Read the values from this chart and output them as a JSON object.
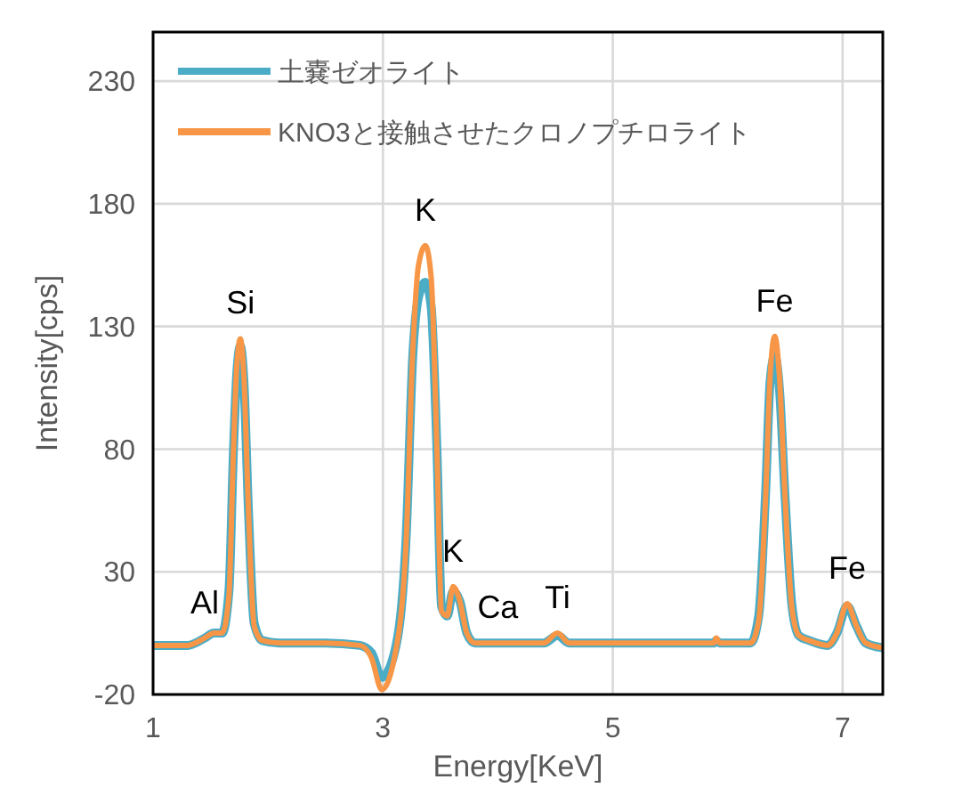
{
  "chart_data": {
    "type": "line",
    "xlabel": "Energy[KeV]",
    "ylabel": "Intensity[cps]",
    "x": [
      1.0,
      1.3,
      1.45,
      1.53,
      1.6,
      1.66,
      1.7,
      1.73,
      1.76,
      1.79,
      1.83,
      1.88,
      1.95,
      2.1,
      2.5,
      2.8,
      2.9,
      2.99,
      3.1,
      3.2,
      3.26,
      3.31,
      3.37,
      3.42,
      3.47,
      3.51,
      3.56,
      3.61,
      3.67,
      3.73,
      3.8,
      4.0,
      4.4,
      4.52,
      4.62,
      5.0,
      5.5,
      5.88,
      5.9,
      5.93,
      6.2,
      6.27,
      6.33,
      6.37,
      6.41,
      6.45,
      6.5,
      6.56,
      6.62,
      6.71,
      6.87,
      6.95,
      7.04,
      7.12,
      7.2,
      7.35
    ],
    "series": [
      {
        "name": "土嚢ゼオライト",
        "color": "#4bacc6",
        "values": [
          0,
          0,
          3,
          5,
          5,
          22,
          80,
          112,
          122,
          108,
          55,
          9,
          2,
          1,
          1,
          0,
          -3,
          -13,
          -3,
          42,
          118,
          142,
          148,
          138,
          80,
          16,
          12,
          22,
          18,
          5,
          1,
          1,
          1,
          4,
          1,
          1,
          1,
          1,
          2,
          1,
          1,
          12,
          62,
          108,
          118,
          105,
          60,
          16,
          4,
          2,
          0,
          5,
          16,
          8,
          1,
          -1
        ]
      },
      {
        "name": "KNO3と接触させたクロノプチロライト",
        "color": "#f79646",
        "values": [
          0,
          0,
          3,
          5,
          5,
          20,
          80,
          115,
          125,
          110,
          55,
          8,
          2,
          1,
          1,
          0,
          -5,
          -18,
          -5,
          40,
          120,
          155,
          163,
          150,
          80,
          14,
          12,
          24,
          18,
          5,
          1,
          1,
          1,
          5,
          1,
          1,
          1,
          1,
          3,
          1,
          1,
          10,
          60,
          110,
          126,
          110,
          60,
          15,
          4,
          2,
          0,
          5,
          17,
          8,
          1,
          -1
        ]
      }
    ],
    "xlim": [
      1,
      7.35
    ],
    "xticks": [
      1,
      3,
      5,
      7
    ],
    "ylim": [
      -20,
      250
    ],
    "yticks": [
      -20,
      30,
      80,
      130,
      180,
      230
    ],
    "grid": true,
    "legend": "top left",
    "line_style": "solid",
    "annotations": [
      {
        "text": "Al",
        "x": 1.45,
        "y": 3
      },
      {
        "text": "Si",
        "x": 1.76,
        "y": 125
      },
      {
        "text": "K",
        "x": 3.37,
        "y": 163
      },
      {
        "text": "K",
        "x": 3.61,
        "y": 24
      },
      {
        "text": "Ca",
        "x": 4.0,
        "y": 1
      },
      {
        "text": "Ti",
        "x": 4.52,
        "y": 5
      },
      {
        "text": "Fe",
        "x": 6.41,
        "y": 126
      },
      {
        "text": "Fe",
        "x": 7.04,
        "y": 17
      }
    ]
  }
}
